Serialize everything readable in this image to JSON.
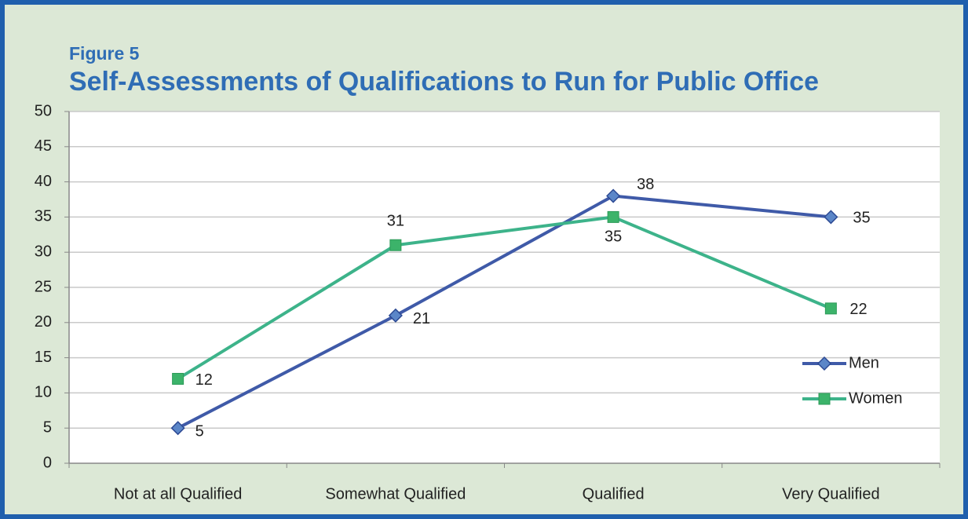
{
  "chart_data": {
    "type": "line",
    "subtitle": "Figure 5",
    "title": "Self-Assessments of Qualifications to Run for Public Office",
    "categories": [
      "Not at all Qualified",
      "Somewhat Qualified",
      "Qualified",
      "Very Qualified"
    ],
    "series": [
      {
        "name": "Men",
        "color": "#3f5aa8",
        "values": [
          5,
          21,
          38,
          35
        ]
      },
      {
        "name": "Women",
        "color": "#3db38a",
        "values": [
          12,
          31,
          35,
          22
        ]
      }
    ],
    "ylim": [
      0,
      50
    ],
    "yticks": [
      0,
      5,
      10,
      15,
      20,
      25,
      30,
      35,
      40,
      45,
      50
    ],
    "grid": true,
    "legend": "right"
  }
}
